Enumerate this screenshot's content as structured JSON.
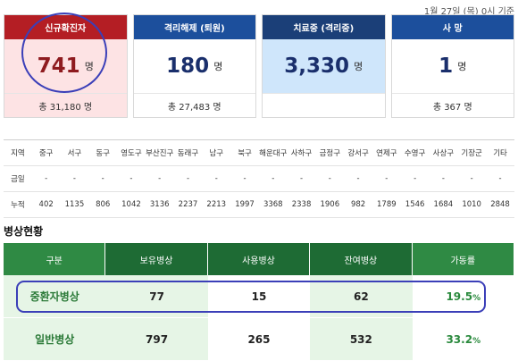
{
  "date_note": "1월 27일 (목) 0시 기준",
  "cards": [
    {
      "title": "신규확진자",
      "value": "741",
      "unit": "명",
      "total": "총 31,180 명"
    },
    {
      "title": "격리해제 (퇴원)",
      "value": "180",
      "unit": "명",
      "total": "총 27,483 명"
    },
    {
      "title": "치료중 (격리중)",
      "value": "3,330",
      "unit": "명",
      "total": ""
    },
    {
      "title": "사 망",
      "value": "1",
      "unit": "명",
      "total": "총 367 명"
    }
  ],
  "district": {
    "headers": [
      "지역",
      "중구",
      "서구",
      "동구",
      "영도구",
      "부산진구",
      "동래구",
      "남구",
      "북구",
      "해운대구",
      "사하구",
      "금정구",
      "강서구",
      "연제구",
      "수영구",
      "사상구",
      "기장군",
      "기타"
    ],
    "today": [
      "금일",
      "-",
      "-",
      "-",
      "-",
      "-",
      "-",
      "-",
      "-",
      "-",
      "-",
      "-",
      "-",
      "-",
      "-",
      "-",
      "-",
      "-"
    ],
    "cumulative": [
      "누적",
      "402",
      "1135",
      "806",
      "1042",
      "3136",
      "2237",
      "2213",
      "1997",
      "3368",
      "2338",
      "1906",
      "982",
      "1789",
      "1546",
      "1684",
      "1010",
      "2848"
    ]
  },
  "beds": {
    "title": "병상현황",
    "headers": [
      "구분",
      "보유병상",
      "사용병상",
      "잔여병상",
      "가동률"
    ],
    "rows": [
      {
        "label": "중환자병상",
        "owned": "77",
        "used": "15",
        "remaining": "62",
        "rate": "19.5",
        "rate_unit": "%"
      },
      {
        "label": "일반병상",
        "owned": "797",
        "used": "265",
        "remaining": "532",
        "rate": "33.2",
        "rate_unit": "%"
      }
    ]
  },
  "colors": {
    "red": "#b41e24",
    "blue": "#1c4f9c",
    "green": "#1e6b34",
    "annotation": "#3b3fb8"
  }
}
